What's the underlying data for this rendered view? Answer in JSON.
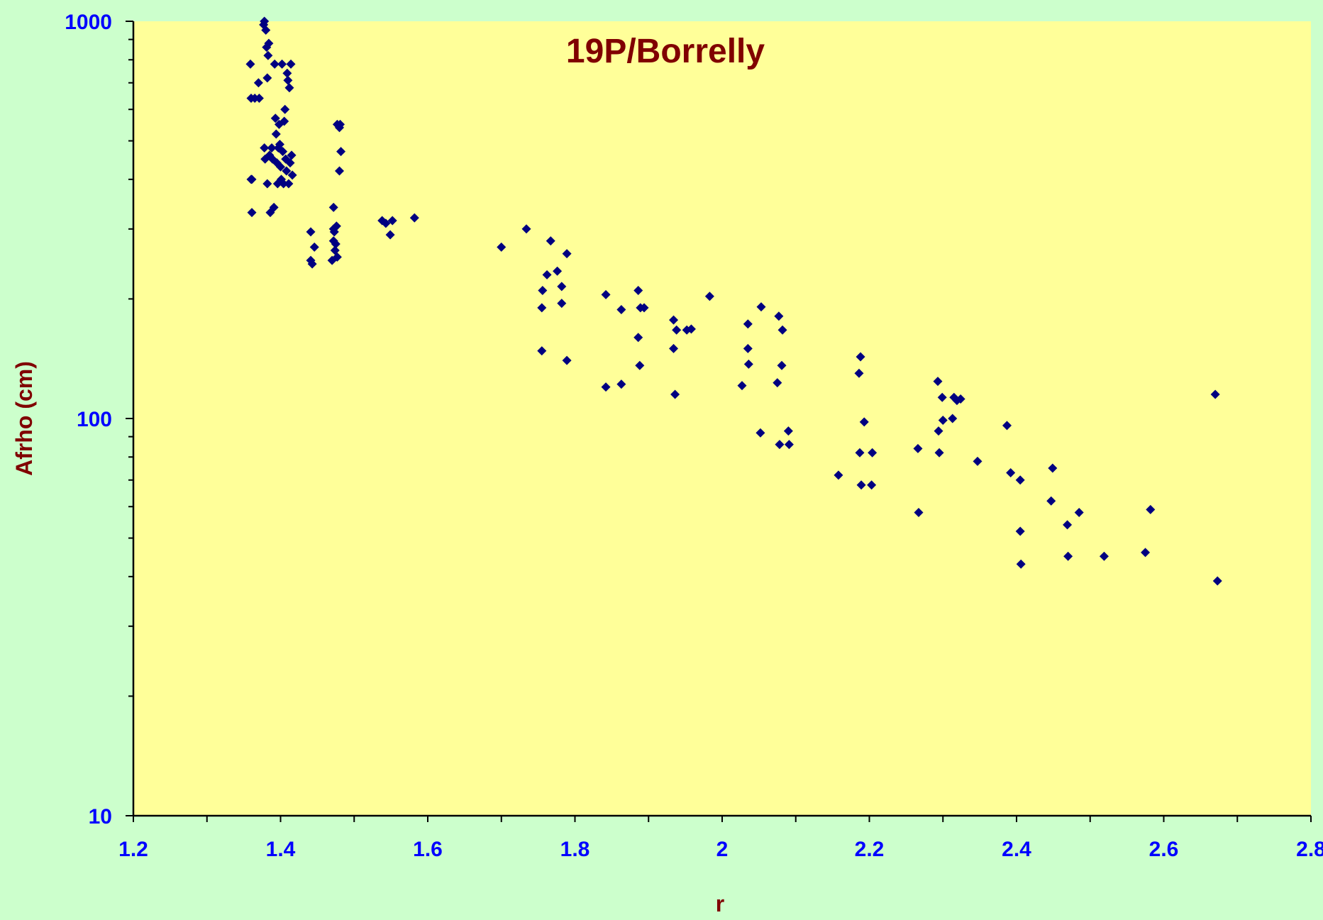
{
  "chart_data": {
    "type": "scatter",
    "title": "19P/Borrelly",
    "xlabel": "r",
    "ylabel": "Afrho (cm)",
    "xlim": [
      1.2,
      2.8
    ],
    "ylim": [
      10,
      1000
    ],
    "y_scale": "log",
    "x_ticks": [
      "1.2",
      "1.4",
      "1.6",
      "1.8",
      "2",
      "2.2",
      "2.4",
      "2.6",
      "2.8"
    ],
    "y_ticks": [
      "10",
      "100",
      "1000"
    ],
    "grid": false,
    "legend": "none",
    "colors": {
      "page_background": "#ccffcc",
      "plot_background": "#ffff99",
      "marker": "#000080",
      "tick_labels": "#0000ff",
      "titles": "#800000"
    },
    "points": [
      [
        1.359,
        780
      ],
      [
        1.36,
        640
      ],
      [
        1.36,
        400
      ],
      [
        1.361,
        400
      ],
      [
        1.361,
        330
      ],
      [
        1.365,
        640
      ],
      [
        1.37,
        700
      ],
      [
        1.371,
        640
      ],
      [
        1.377,
        980
      ],
      [
        1.378,
        1000
      ],
      [
        1.378,
        480
      ],
      [
        1.379,
        450
      ],
      [
        1.38,
        950
      ],
      [
        1.381,
        860
      ],
      [
        1.382,
        390
      ],
      [
        1.382,
        720
      ],
      [
        1.383,
        820
      ],
      [
        1.384,
        880
      ],
      [
        1.385,
        460
      ],
      [
        1.386,
        330
      ],
      [
        1.388,
        480
      ],
      [
        1.389,
        450
      ],
      [
        1.391,
        340
      ],
      [
        1.392,
        780
      ],
      [
        1.393,
        570
      ],
      [
        1.394,
        520
      ],
      [
        1.395,
        440
      ],
      [
        1.396,
        390
      ],
      [
        1.397,
        480
      ],
      [
        1.398,
        550
      ],
      [
        1.399,
        490
      ],
      [
        1.4,
        430
      ],
      [
        1.401,
        400
      ],
      [
        1.402,
        780
      ],
      [
        1.403,
        470
      ],
      [
        1.404,
        390
      ],
      [
        1.405,
        560
      ],
      [
        1.406,
        600
      ],
      [
        1.407,
        450
      ],
      [
        1.408,
        420
      ],
      [
        1.409,
        740
      ],
      [
        1.41,
        710
      ],
      [
        1.411,
        390
      ],
      [
        1.412,
        680
      ],
      [
        1.413,
        440
      ],
      [
        1.414,
        780
      ],
      [
        1.415,
        460
      ],
      [
        1.416,
        410
      ],
      [
        1.441,
        295
      ],
      [
        1.441,
        250
      ],
      [
        1.443,
        245
      ],
      [
        1.446,
        270
      ],
      [
        1.47,
        250
      ],
      [
        1.472,
        340
      ],
      [
        1.472,
        300
      ],
      [
        1.472,
        280
      ],
      [
        1.473,
        295
      ],
      [
        1.474,
        265
      ],
      [
        1.475,
        275
      ],
      [
        1.476,
        305
      ],
      [
        1.477,
        550
      ],
      [
        1.477,
        255
      ],
      [
        1.48,
        540
      ],
      [
        1.48,
        420
      ],
      [
        1.481,
        550
      ],
      [
        1.482,
        470
      ],
      [
        1.538,
        315
      ],
      [
        1.543,
        310
      ],
      [
        1.549,
        290
      ],
      [
        1.552,
        315
      ],
      [
        1.582,
        320
      ],
      [
        1.7,
        270
      ],
      [
        1.734,
        300
      ],
      [
        1.755,
        190
      ],
      [
        1.755,
        148
      ],
      [
        1.756,
        210
      ],
      [
        1.762,
        230
      ],
      [
        1.767,
        280
      ],
      [
        1.776,
        235
      ],
      [
        1.782,
        195
      ],
      [
        1.782,
        215
      ],
      [
        1.789,
        140
      ],
      [
        1.789,
        260
      ],
      [
        1.842,
        120
      ],
      [
        1.842,
        205
      ],
      [
        1.863,
        188
      ],
      [
        1.863,
        122
      ],
      [
        1.886,
        160
      ],
      [
        1.886,
        210
      ],
      [
        1.888,
        136
      ],
      [
        1.889,
        190
      ],
      [
        1.894,
        190
      ],
      [
        1.934,
        177
      ],
      [
        1.934,
        150
      ],
      [
        1.936,
        115
      ],
      [
        1.938,
        167
      ],
      [
        1.952,
        167
      ],
      [
        1.958,
        168
      ],
      [
        1.983,
        203
      ],
      [
        2.027,
        121
      ],
      [
        2.035,
        150
      ],
      [
        2.035,
        173
      ],
      [
        2.036,
        137
      ],
      [
        2.052,
        92
      ],
      [
        2.053,
        191
      ],
      [
        2.075,
        123
      ],
      [
        2.077,
        181
      ],
      [
        2.078,
        86
      ],
      [
        2.081,
        136
      ],
      [
        2.082,
        167
      ],
      [
        2.09,
        93
      ],
      [
        2.091,
        86
      ],
      [
        2.158,
        72
      ],
      [
        2.186,
        130
      ],
      [
        2.187,
        82
      ],
      [
        2.188,
        143
      ],
      [
        2.189,
        68
      ],
      [
        2.193,
        98
      ],
      [
        2.203,
        68
      ],
      [
        2.204,
        82
      ],
      [
        2.266,
        84
      ],
      [
        2.267,
        58
      ],
      [
        2.293,
        124
      ],
      [
        2.294,
        93
      ],
      [
        2.295,
        82
      ],
      [
        2.299,
        113
      ],
      [
        2.3,
        99
      ],
      [
        2.313,
        100
      ],
      [
        2.315,
        113
      ],
      [
        2.319,
        111
      ],
      [
        2.324,
        112
      ],
      [
        2.347,
        78
      ],
      [
        2.387,
        96
      ],
      [
        2.392,
        73
      ],
      [
        2.405,
        70
      ],
      [
        2.405,
        52
      ],
      [
        2.406,
        43
      ],
      [
        2.447,
        62
      ],
      [
        2.449,
        75
      ],
      [
        2.469,
        54
      ],
      [
        2.47,
        45
      ],
      [
        2.485,
        58
      ],
      [
        2.519,
        45
      ],
      [
        2.575,
        46
      ],
      [
        2.582,
        59
      ],
      [
        2.67,
        115
      ],
      [
        2.673,
        39
      ]
    ]
  }
}
